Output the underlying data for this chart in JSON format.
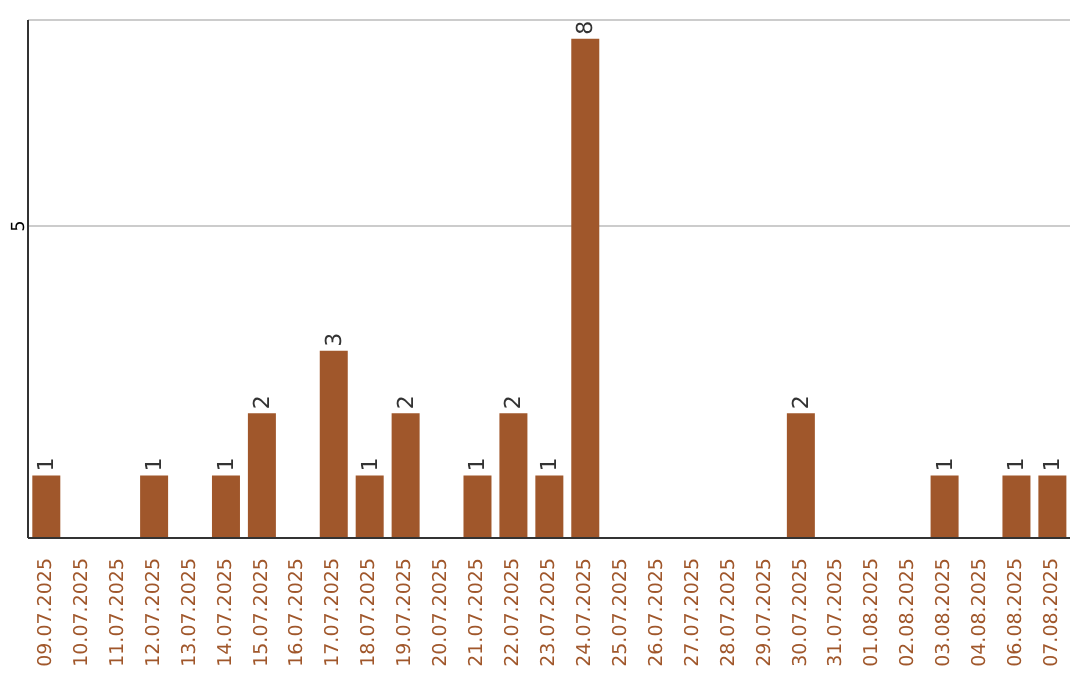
{
  "chart_data": {
    "type": "bar",
    "categories": [
      "09.07.2025",
      "10.07.2025",
      "11.07.2025",
      "12.07.2025",
      "13.07.2025",
      "14.07.2025",
      "15.07.2025",
      "16.07.2025",
      "17.07.2025",
      "18.07.2025",
      "19.07.2025",
      "20.07.2025",
      "21.07.2025",
      "22.07.2025",
      "23.07.2025",
      "24.07.2025",
      "25.07.2025",
      "26.07.2025",
      "27.07.2025",
      "28.07.2025",
      "29.07.2025",
      "30.07.2025",
      "31.07.2025",
      "01.08.2025",
      "02.08.2025",
      "03.08.2025",
      "04.08.2025",
      "06.08.2025",
      "07.08.2025"
    ],
    "values": [
      1,
      0,
      0,
      1,
      0,
      1,
      2,
      0,
      3,
      1,
      2,
      0,
      1,
      2,
      1,
      8,
      0,
      0,
      0,
      0,
      0,
      2,
      0,
      0,
      0,
      1,
      0,
      1,
      1
    ],
    "value_labels": [
      "1",
      null,
      null,
      "1",
      null,
      "1",
      "2",
      null,
      "3",
      "1",
      "2",
      null,
      "1",
      "2",
      "1",
      "8",
      null,
      null,
      null,
      null,
      null,
      "2",
      null,
      null,
      null,
      "1",
      null,
      "1",
      "1"
    ],
    "color": "#a0572b",
    "ylim": [
      0,
      8.3
    ],
    "yticks": [
      5
    ],
    "grid": "y"
  }
}
